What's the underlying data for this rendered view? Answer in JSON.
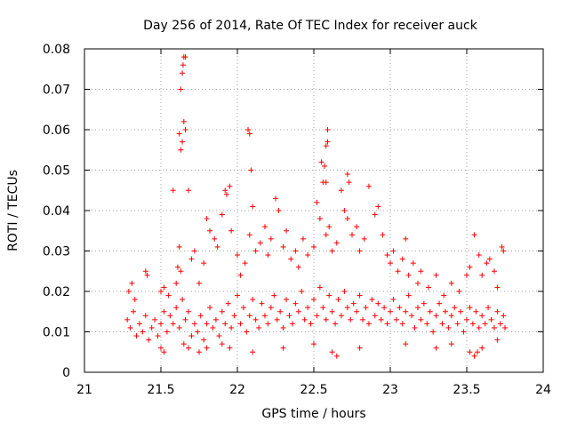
{
  "chart_data": {
    "type": "scatter",
    "title": "Day 256 of 2014, Rate Of TEC Index for receiver auck",
    "xlabel": "GPS time / hours",
    "ylabel": "ROTI / TECUs",
    "xlim": [
      21,
      24
    ],
    "ylim": [
      0,
      0.08
    ],
    "xticks": [
      21,
      21.5,
      22,
      22.5,
      23,
      23.5,
      24
    ],
    "yticks": [
      0,
      0.01,
      0.02,
      0.03,
      0.04,
      0.05,
      0.06,
      0.07,
      0.08
    ],
    "xtick_labels": [
      "21",
      "21.5",
      "22",
      "22.5",
      "23",
      "23.5",
      "24"
    ],
    "ytick_labels": [
      "0",
      "0.01",
      "0.02",
      "0.03",
      "0.04",
      "0.05",
      "0.06",
      "0.07",
      "0.08"
    ],
    "grid": true,
    "marker": "+",
    "color": "#ff0000",
    "x_range_of_points": [
      21.27,
      23.76
    ],
    "series": [
      {
        "name": "ROTI",
        "points": [
          [
            21.28,
            0.013
          ],
          [
            21.3,
            0.011
          ],
          [
            21.32,
            0.015
          ],
          [
            21.34,
            0.009
          ],
          [
            21.36,
            0.012
          ],
          [
            21.38,
            0.01
          ],
          [
            21.4,
            0.014
          ],
          [
            21.42,
            0.008
          ],
          [
            21.44,
            0.011
          ],
          [
            21.46,
            0.013
          ],
          [
            21.48,
            0.009
          ],
          [
            21.5,
            0.012
          ],
          [
            21.52,
            0.015
          ],
          [
            21.54,
            0.01
          ],
          [
            21.56,
            0.014
          ],
          [
            21.58,
            0.012
          ],
          [
            21.6,
            0.016
          ],
          [
            21.62,
            0.011
          ],
          [
            21.64,
            0.018
          ],
          [
            21.66,
            0.013
          ],
          [
            21.68,
            0.015
          ],
          [
            21.7,
            0.009
          ],
          [
            21.72,
            0.012
          ],
          [
            21.74,
            0.01
          ],
          [
            21.76,
            0.014
          ],
          [
            21.78,
            0.008
          ],
          [
            21.8,
            0.012
          ],
          [
            21.82,
            0.016
          ],
          [
            21.84,
            0.011
          ],
          [
            21.86,
            0.013
          ],
          [
            21.88,
            0.009
          ],
          [
            21.9,
            0.015
          ],
          [
            21.92,
            0.012
          ],
          [
            21.94,
            0.017
          ],
          [
            21.96,
            0.011
          ],
          [
            21.98,
            0.014
          ],
          [
            22.0,
            0.019
          ],
          [
            22.02,
            0.012
          ],
          [
            22.04,
            0.016
          ],
          [
            22.06,
            0.01
          ],
          [
            22.08,
            0.014
          ],
          [
            22.1,
            0.018
          ],
          [
            22.12,
            0.013
          ],
          [
            22.14,
            0.011
          ],
          [
            22.16,
            0.017
          ],
          [
            22.18,
            0.014
          ],
          [
            22.2,
            0.012
          ],
          [
            22.22,
            0.016
          ],
          [
            22.24,
            0.019
          ],
          [
            22.26,
            0.013
          ],
          [
            22.28,
            0.015
          ],
          [
            22.3,
            0.011
          ],
          [
            22.32,
            0.018
          ],
          [
            22.34,
            0.014
          ],
          [
            22.36,
            0.012
          ],
          [
            22.38,
            0.017
          ],
          [
            22.4,
            0.015
          ],
          [
            22.42,
            0.02
          ],
          [
            22.44,
            0.013
          ],
          [
            22.46,
            0.016
          ],
          [
            22.48,
            0.012
          ],
          [
            22.5,
            0.018
          ],
          [
            22.52,
            0.014
          ],
          [
            22.54,
            0.021
          ],
          [
            22.56,
            0.016
          ],
          [
            22.58,
            0.013
          ],
          [
            22.6,
            0.019
          ],
          [
            22.62,
            0.015
          ],
          [
            22.64,
            0.012
          ],
          [
            22.66,
            0.018
          ],
          [
            22.68,
            0.014
          ],
          [
            22.7,
            0.02
          ],
          [
            22.72,
            0.016
          ],
          [
            22.74,
            0.013
          ],
          [
            22.76,
            0.017
          ],
          [
            22.78,
            0.015
          ],
          [
            22.8,
            0.019
          ],
          [
            22.82,
            0.013
          ],
          [
            22.84,
            0.016
          ],
          [
            22.86,
            0.012
          ],
          [
            22.88,
            0.018
          ],
          [
            22.9,
            0.014
          ],
          [
            22.92,
            0.017
          ],
          [
            22.94,
            0.013
          ],
          [
            22.96,
            0.016
          ],
          [
            22.98,
            0.012
          ],
          [
            23.0,
            0.015
          ],
          [
            23.02,
            0.018
          ],
          [
            23.04,
            0.013
          ],
          [
            23.06,
            0.016
          ],
          [
            23.08,
            0.012
          ],
          [
            23.1,
            0.015
          ],
          [
            23.12,
            0.019
          ],
          [
            23.14,
            0.014
          ],
          [
            23.16,
            0.011
          ],
          [
            23.18,
            0.016
          ],
          [
            23.2,
            0.013
          ],
          [
            23.22,
            0.017
          ],
          [
            23.24,
            0.012
          ],
          [
            23.26,
            0.015
          ],
          [
            23.28,
            0.01
          ],
          [
            23.3,
            0.014
          ],
          [
            23.32,
            0.017
          ],
          [
            23.34,
            0.012
          ],
          [
            23.36,
            0.015
          ],
          [
            23.38,
            0.011
          ],
          [
            23.4,
            0.014
          ],
          [
            23.42,
            0.016
          ],
          [
            23.44,
            0.012
          ],
          [
            23.46,
            0.015
          ],
          [
            23.48,
            0.01
          ],
          [
            23.5,
            0.013
          ],
          [
            23.52,
            0.016
          ],
          [
            23.54,
            0.012
          ],
          [
            23.56,
            0.015
          ],
          [
            23.58,
            0.011
          ],
          [
            23.6,
            0.014
          ],
          [
            23.62,
            0.012
          ],
          [
            23.64,
            0.016
          ],
          [
            23.66,
            0.013
          ],
          [
            23.68,
            0.011
          ],
          [
            23.7,
            0.015
          ],
          [
            23.72,
            0.012
          ],
          [
            23.74,
            0.014
          ],
          [
            23.75,
            0.011
          ],
          [
            21.29,
            0.02
          ],
          [
            21.31,
            0.022
          ],
          [
            21.33,
            0.018
          ],
          [
            21.4,
            0.025
          ],
          [
            21.41,
            0.024
          ],
          [
            21.5,
            0.02
          ],
          [
            21.52,
            0.021
          ],
          [
            21.55,
            0.019
          ],
          [
            21.6,
            0.022
          ],
          [
            21.61,
            0.026
          ],
          [
            21.62,
            0.031
          ],
          [
            21.63,
            0.025
          ],
          [
            21.7,
            0.028
          ],
          [
            21.72,
            0.03
          ],
          [
            21.75,
            0.022
          ],
          [
            21.78,
            0.027
          ],
          [
            21.8,
            0.038
          ],
          [
            21.82,
            0.035
          ],
          [
            21.85,
            0.033
          ],
          [
            21.87,
            0.031
          ],
          [
            21.9,
            0.039
          ],
          [
            21.92,
            0.045
          ],
          [
            21.93,
            0.044
          ],
          [
            21.95,
            0.046
          ],
          [
            21.96,
            0.035
          ],
          [
            22.0,
            0.029
          ],
          [
            22.02,
            0.024
          ],
          [
            22.05,
            0.027
          ],
          [
            22.08,
            0.034
          ],
          [
            22.1,
            0.041
          ],
          [
            22.12,
            0.03
          ],
          [
            22.15,
            0.032
          ],
          [
            22.18,
            0.036
          ],
          [
            22.2,
            0.029
          ],
          [
            22.22,
            0.033
          ],
          [
            22.25,
            0.043
          ],
          [
            22.27,
            0.04
          ],
          [
            22.3,
            0.031
          ],
          [
            22.32,
            0.035
          ],
          [
            22.35,
            0.028
          ],
          [
            22.38,
            0.03
          ],
          [
            22.4,
            0.026
          ],
          [
            22.43,
            0.033
          ],
          [
            22.46,
            0.029
          ],
          [
            22.5,
            0.031
          ],
          [
            22.52,
            0.042
          ],
          [
            22.54,
            0.038
          ],
          [
            22.56,
            0.047
          ],
          [
            22.57,
            0.051
          ],
          [
            22.58,
            0.034
          ],
          [
            22.6,
            0.036
          ],
          [
            22.62,
            0.03
          ],
          [
            22.65,
            0.032
          ],
          [
            22.68,
            0.045
          ],
          [
            22.7,
            0.04
          ],
          [
            22.72,
            0.038
          ],
          [
            22.75,
            0.034
          ],
          [
            22.78,
            0.036
          ],
          [
            22.8,
            0.03
          ],
          [
            22.83,
            0.033
          ],
          [
            22.86,
            0.046
          ],
          [
            22.9,
            0.039
          ],
          [
            22.92,
            0.041
          ],
          [
            22.95,
            0.034
          ],
          [
            22.98,
            0.029
          ],
          [
            23.0,
            0.027
          ],
          [
            23.02,
            0.03
          ],
          [
            23.05,
            0.025
          ],
          [
            23.08,
            0.028
          ],
          [
            23.1,
            0.033
          ],
          [
            23.12,
            0.024
          ],
          [
            23.15,
            0.027
          ],
          [
            23.18,
            0.022
          ],
          [
            23.2,
            0.025
          ],
          [
            23.25,
            0.021
          ],
          [
            23.3,
            0.024
          ],
          [
            23.35,
            0.019
          ],
          [
            23.4,
            0.022
          ],
          [
            23.45,
            0.02
          ],
          [
            23.5,
            0.024
          ],
          [
            23.52,
            0.026
          ],
          [
            23.55,
            0.034
          ],
          [
            23.58,
            0.029
          ],
          [
            23.6,
            0.024
          ],
          [
            23.63,
            0.027
          ],
          [
            23.65,
            0.028
          ],
          [
            23.68,
            0.025
          ],
          [
            23.7,
            0.021
          ],
          [
            23.73,
            0.031
          ],
          [
            23.74,
            0.03
          ],
          [
            21.58,
            0.045
          ],
          [
            21.62,
            0.059
          ],
          [
            21.63,
            0.055
          ],
          [
            21.64,
            0.057
          ],
          [
            21.65,
            0.062
          ],
          [
            21.66,
            0.06
          ],
          [
            21.63,
            0.07
          ],
          [
            21.64,
            0.074
          ],
          [
            21.645,
            0.076
          ],
          [
            21.65,
            0.078
          ],
          [
            21.66,
            0.078
          ],
          [
            21.68,
            0.045
          ],
          [
            22.07,
            0.06
          ],
          [
            22.08,
            0.059
          ],
          [
            22.09,
            0.05
          ],
          [
            22.55,
            0.052
          ],
          [
            22.59,
            0.06
          ],
          [
            22.58,
            0.056
          ],
          [
            22.59,
            0.057
          ],
          [
            22.58,
            0.047
          ],
          [
            22.72,
            0.049
          ],
          [
            22.73,
            0.047
          ],
          [
            21.5,
            0.006
          ],
          [
            21.52,
            0.005
          ],
          [
            21.65,
            0.007
          ],
          [
            21.68,
            0.006
          ],
          [
            21.75,
            0.005
          ],
          [
            21.8,
            0.006
          ],
          [
            21.9,
            0.007
          ],
          [
            21.95,
            0.006
          ],
          [
            22.1,
            0.005
          ],
          [
            22.3,
            0.006
          ],
          [
            22.5,
            0.007
          ],
          [
            22.62,
            0.005
          ],
          [
            22.65,
            0.004
          ],
          [
            22.8,
            0.006
          ],
          [
            23.1,
            0.007
          ],
          [
            23.3,
            0.006
          ],
          [
            23.52,
            0.005
          ],
          [
            23.55,
            0.004
          ],
          [
            23.57,
            0.005
          ],
          [
            23.6,
            0.006
          ],
          [
            23.4,
            0.007
          ],
          [
            23.7,
            0.008
          ]
        ]
      }
    ]
  }
}
